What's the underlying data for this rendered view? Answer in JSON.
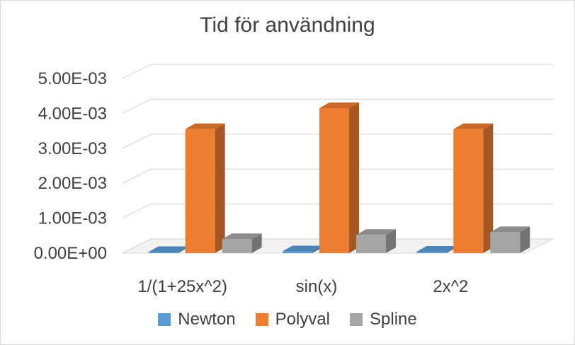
{
  "chart_data": {
    "type": "bar",
    "title": "Tid för användning",
    "categories": [
      "1/(1+25x^2)",
      "sin(x)",
      "2x^2"
    ],
    "series": [
      {
        "name": "Newton",
        "color": "#5b9bd5",
        "values": [
          3e-05,
          5e-05,
          4e-05
        ]
      },
      {
        "name": "Polyval",
        "color": "#ed7d31",
        "values": [
          0.00355,
          0.00415,
          0.00355
        ]
      },
      {
        "name": "Spline",
        "color": "#a5a5a5",
        "values": [
          0.0004,
          0.00052,
          0.0006
        ]
      }
    ],
    "ylim": [
      0,
      0.005
    ],
    "yticks": [
      "0.00E+00",
      "1.00E-03",
      "2.00E-03",
      "3.00E-03",
      "4.00E-03",
      "5.00E-03"
    ],
    "grid": true,
    "legend_position": "bottom",
    "style": "3d-column"
  }
}
